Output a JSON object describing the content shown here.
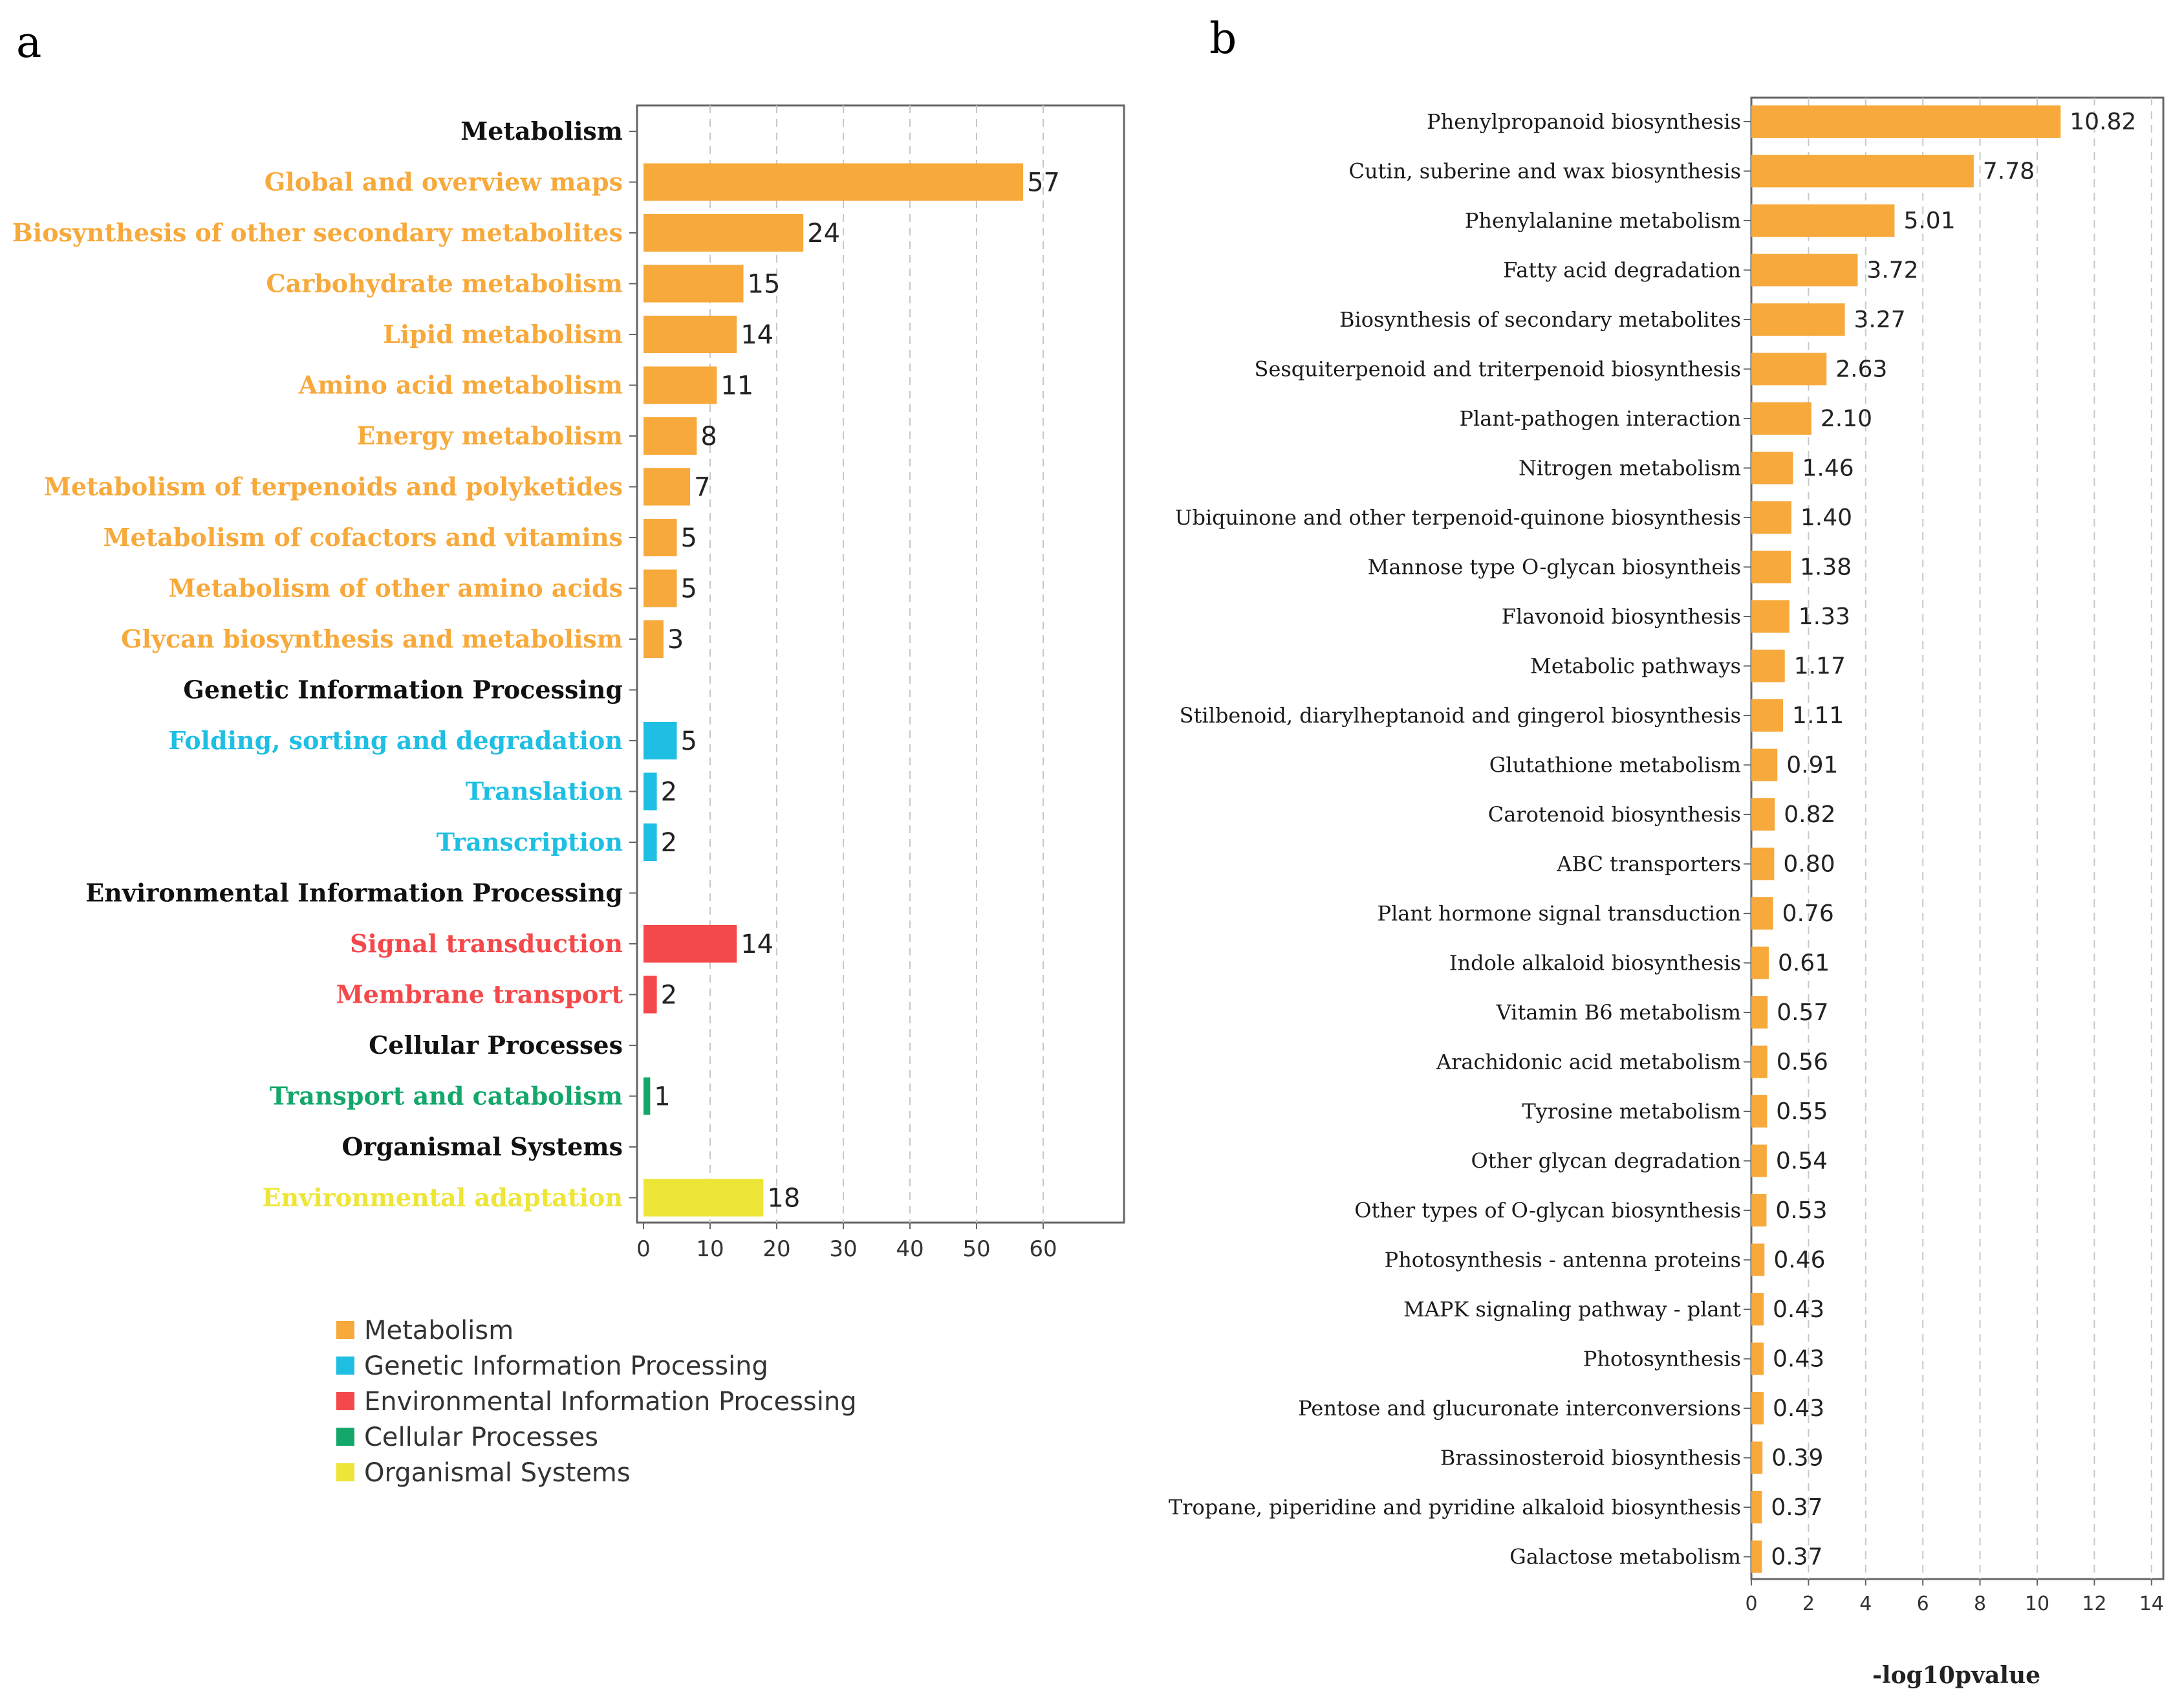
{
  "chart_data": [
    {
      "panel": "a",
      "type": "bar",
      "orientation": "horizontal",
      "xlim": [
        0,
        72
      ],
      "xticks": [
        0,
        10,
        20,
        30,
        40,
        50,
        60
      ],
      "rows": [
        {
          "label": "Metabolism",
          "header": true,
          "group": "Metabolism"
        },
        {
          "label": "Global and overview maps",
          "value": 57,
          "group": "Metabolism"
        },
        {
          "label": "Biosynthesis of other secondary metabolites",
          "value": 24,
          "group": "Metabolism"
        },
        {
          "label": "Carbohydrate metabolism",
          "value": 15,
          "group": "Metabolism"
        },
        {
          "label": "Lipid metabolism",
          "value": 14,
          "group": "Metabolism"
        },
        {
          "label": "Amino acid metabolism",
          "value": 11,
          "group": "Metabolism"
        },
        {
          "label": "Energy metabolism",
          "value": 8,
          "group": "Metabolism"
        },
        {
          "label": "Metabolism of terpenoids and polyketides",
          "value": 7,
          "group": "Metabolism"
        },
        {
          "label": "Metabolism of cofactors and vitamins",
          "value": 5,
          "group": "Metabolism"
        },
        {
          "label": "Metabolism of other amino acids",
          "value": 5,
          "group": "Metabolism"
        },
        {
          "label": "Glycan biosynthesis and metabolism",
          "value": 3,
          "group": "Metabolism"
        },
        {
          "label": "Genetic Information Processing",
          "header": true,
          "group": "Genetic Information Processing"
        },
        {
          "label": "Folding, sorting and degradation",
          "value": 5,
          "group": "Genetic Information Processing"
        },
        {
          "label": "Translation",
          "value": 2,
          "group": "Genetic Information Processing"
        },
        {
          "label": "Transcription",
          "value": 2,
          "group": "Genetic Information Processing"
        },
        {
          "label": "Environmental Information Processing",
          "header": true,
          "group": "Environmental Information Processing"
        },
        {
          "label": "Signal transduction",
          "value": 14,
          "group": "Environmental Information Processing"
        },
        {
          "label": "Membrane transport",
          "value": 2,
          "group": "Environmental Information Processing"
        },
        {
          "label": "Cellular Processes",
          "header": true,
          "group": "Cellular Processes"
        },
        {
          "label": "Transport and catabolism",
          "value": 1,
          "group": "Cellular Processes"
        },
        {
          "label": "Organismal Systems",
          "header": true,
          "group": "Organismal Systems"
        },
        {
          "label": "Environmental adaptation",
          "value": 18,
          "group": "Organismal Systems"
        }
      ],
      "legend": [
        {
          "name": "Metabolism",
          "color": "#F7A93B"
        },
        {
          "name": "Genetic Information Processing",
          "color": "#1EBFE3"
        },
        {
          "name": "Environmental Information Processing",
          "color": "#F4484A"
        },
        {
          "name": "Cellular Processes",
          "color": "#13A86A"
        },
        {
          "name": "Organismal Systems",
          "color": "#EDE537"
        }
      ]
    },
    {
      "panel": "b",
      "type": "bar",
      "orientation": "horizontal",
      "xlabel": "-log10pvalue",
      "xlim": [
        0,
        14.5
      ],
      "xticks": [
        0,
        2,
        4,
        6,
        8,
        10,
        12,
        14
      ],
      "color": "#F7A93B",
      "rows": [
        {
          "label": "Phenylpropanoid biosynthesis",
          "value": 10.82,
          "text": "10.82"
        },
        {
          "label": "Cutin, suberine and wax biosynthesis",
          "value": 7.78,
          "text": "7.78"
        },
        {
          "label": "Phenylalanine metabolism",
          "value": 5.01,
          "text": "5.01"
        },
        {
          "label": "Fatty acid degradation",
          "value": 3.72,
          "text": "3.72"
        },
        {
          "label": "Biosynthesis of secondary metabolites",
          "value": 3.27,
          "text": "3.27"
        },
        {
          "label": "Sesquiterpenoid and triterpenoid biosynthesis",
          "value": 2.63,
          "text": "2.63"
        },
        {
          "label": "Plant-pathogen interaction",
          "value": 2.1,
          "text": "2.10"
        },
        {
          "label": "Nitrogen metabolism",
          "value": 1.46,
          "text": "1.46"
        },
        {
          "label": "Ubiquinone and other terpenoid-quinone biosynthesis",
          "value": 1.4,
          "text": "1.40"
        },
        {
          "label": "Mannose type O-glycan biosyntheis",
          "value": 1.38,
          "text": "1.38"
        },
        {
          "label": "Flavonoid biosynthesis",
          "value": 1.33,
          "text": "1.33"
        },
        {
          "label": "Metabolic pathways",
          "value": 1.17,
          "text": "1.17"
        },
        {
          "label": "Stilbenoid, diarylheptanoid and gingerol biosynthesis",
          "value": 1.11,
          "text": "1.11"
        },
        {
          "label": "Glutathione metabolism",
          "value": 0.91,
          "text": "0.91"
        },
        {
          "label": "Carotenoid biosynthesis",
          "value": 0.82,
          "text": "0.82"
        },
        {
          "label": "ABC transporters",
          "value": 0.8,
          "text": "0.80"
        },
        {
          "label": "Plant hormone signal transduction",
          "value": 0.76,
          "text": "0.76"
        },
        {
          "label": "Indole alkaloid biosynthesis",
          "value": 0.61,
          "text": "0.61"
        },
        {
          "label": "Vitamin B6 metabolism",
          "value": 0.57,
          "text": "0.57"
        },
        {
          "label": "Arachidonic acid metabolism",
          "value": 0.56,
          "text": "0.56"
        },
        {
          "label": "Tyrosine metabolism",
          "value": 0.55,
          "text": "0.55"
        },
        {
          "label": "Other glycan degradation",
          "value": 0.54,
          "text": "0.54"
        },
        {
          "label": "Other types of O-glycan biosynthesis",
          "value": 0.53,
          "text": "0.53"
        },
        {
          "label": "Photosynthesis - antenna proteins",
          "value": 0.46,
          "text": "0.46"
        },
        {
          "label": "MAPK signaling pathway - plant",
          "value": 0.43,
          "text": "0.43"
        },
        {
          "label": "Photosynthesis",
          "value": 0.43,
          "text": "0.43"
        },
        {
          "label": "Pentose and glucuronate interconversions",
          "value": 0.43,
          "text": "0.43"
        },
        {
          "label": "Brassinosteroid biosynthesis",
          "value": 0.39,
          "text": "0.39"
        },
        {
          "label": "Tropane, piperidine and pyridine alkaloid biosynthesis",
          "value": 0.37,
          "text": "0.37"
        },
        {
          "label": "Galactose metabolism",
          "value": 0.37,
          "text": "0.37"
        }
      ]
    }
  ],
  "colors": {
    "Metabolism": "#F7A93B",
    "Genetic Information Processing": "#1EBFE3",
    "Environmental Information Processing": "#F4484A",
    "Cellular Processes": "#13A86A",
    "Organismal Systems": "#EDE537",
    "header_text": "#111111",
    "axis": "#555555",
    "grid": "#c8c8c8"
  }
}
